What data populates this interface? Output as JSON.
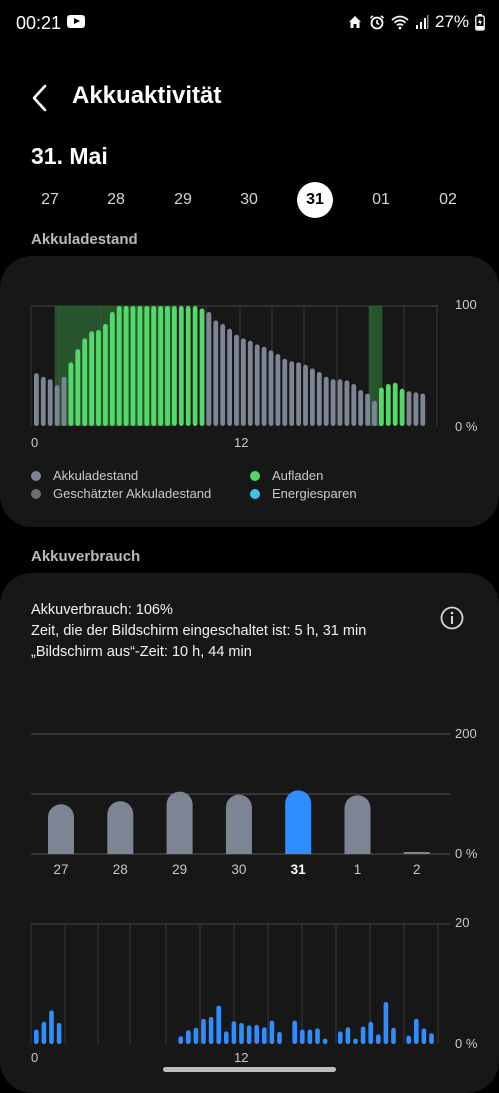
{
  "status": {
    "time": "00:21",
    "battery": "27%"
  },
  "header": {
    "title": "Akkuaktivität"
  },
  "date": "31. Mai",
  "days": [
    "27",
    "28",
    "29",
    "30",
    "31",
    "01",
    "02"
  ],
  "selected_day": "31",
  "level_section": {
    "title": "Akkuladestand",
    "y_max_label": "100",
    "y_min_label": "0 %",
    "x_labels": [
      "0",
      "12"
    ],
    "legend": [
      {
        "label": "Akkuladestand",
        "color": "#7d8595"
      },
      {
        "label": "Geschätzter Akkuladestand",
        "color": "#6c6f76"
      },
      {
        "label": "Aufladen",
        "color": "#54d86a"
      },
      {
        "label": "Energiesparen",
        "color": "#3ac4e8"
      }
    ]
  },
  "usage_section": {
    "title": "Akkuverbrauch",
    "usage_line": "Akkuverbrauch: 106%",
    "screen_on_line": "Zeit, die der Bildschirm eingeschaltet ist: 5 h, 31 min",
    "screen_off_line": "„Bildschirm aus“-Zeit: 10 h, 44 min"
  },
  "chart_data": [
    {
      "type": "bar",
      "name": "Akkuladestand",
      "ylim": [
        0,
        100
      ],
      "y_ticks": [
        "100",
        "0 %"
      ],
      "x_ticks": [
        "0",
        "12"
      ],
      "values": [
        44,
        41,
        39,
        34,
        41,
        53,
        64,
        73,
        79,
        80,
        85,
        95,
        100,
        100,
        100,
        100,
        100,
        100,
        100,
        100,
        100,
        100,
        100,
        100,
        98,
        95,
        88,
        85,
        81,
        76,
        73,
        71,
        68,
        66,
        63,
        60,
        56,
        54,
        53,
        51,
        48,
        45,
        41,
        39,
        39,
        38,
        35,
        30,
        27,
        21,
        32,
        35,
        36,
        31,
        29,
        28,
        27
      ],
      "charging": [
        0,
        0,
        0,
        0,
        0,
        1,
        1,
        1,
        1,
        1,
        1,
        1,
        1,
        1,
        1,
        1,
        1,
        1,
        1,
        1,
        1,
        1,
        1,
        1,
        1,
        0,
        0,
        0,
        0,
        0,
        0,
        0,
        0,
        0,
        0,
        0,
        0,
        0,
        0,
        0,
        0,
        0,
        0,
        0,
        0,
        0,
        0,
        0,
        0,
        0,
        1,
        1,
        1,
        1,
        0,
        0,
        0
      ],
      "charging_bands": [
        [
          3,
          20
        ],
        [
          48.5,
          50.5
        ]
      ]
    },
    {
      "type": "bar",
      "name": "Akkuverbrauch",
      "categories": [
        "27",
        "28",
        "29",
        "30",
        "31",
        "1",
        "2"
      ],
      "values": [
        83,
        88,
        104,
        99,
        106,
        98,
        2
      ],
      "highlight": "31",
      "ylim": [
        0,
        200
      ],
      "y_ticks": [
        "200",
        "0 %"
      ],
      "colors": {
        "bar": "#7d8595",
        "selected": "#2f8eff"
      }
    },
    {
      "type": "bar",
      "name": "Akkuverbrauch pro Stunde",
      "ylim": [
        0,
        20
      ],
      "y_ticks": [
        "20",
        "0 %"
      ],
      "x_ticks": [
        "0",
        "12"
      ],
      "values": [
        2.4,
        3.7,
        5.6,
        3.5,
        0,
        0,
        0,
        0,
        0,
        0,
        0,
        0,
        0,
        0,
        0,
        0,
        0,
        0,
        0,
        1.3,
        2.3,
        2.7,
        4.2,
        4.5,
        6.4,
        2.1,
        3.8,
        3.5,
        3.1,
        3.2,
        2.8,
        3.9,
        2.0,
        0,
        3.9,
        2.4,
        2.4,
        2.6,
        0.9,
        0,
        2.1,
        2.8,
        0.9,
        2.9,
        3.7,
        1.6,
        7.0,
        2.7,
        0,
        1.4,
        4.2,
        2.6,
        1.8
      ]
    }
  ]
}
